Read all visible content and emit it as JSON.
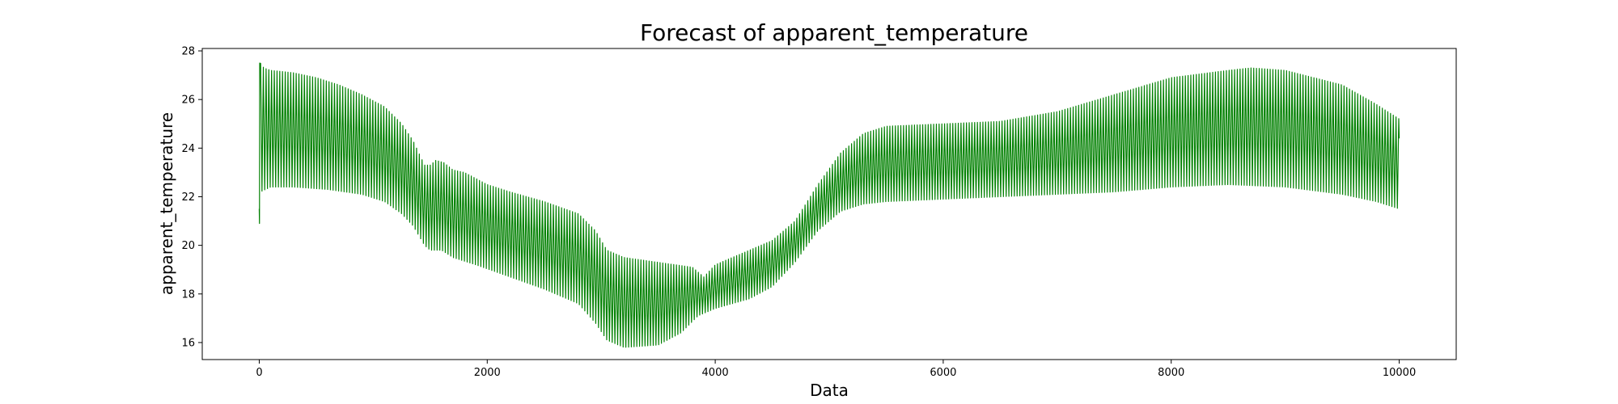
{
  "chart_data": {
    "type": "line",
    "title": "Forecast of apparent_temperature",
    "xlabel": "Data",
    "ylabel": "apparent_temperature",
    "xlim": [
      -500,
      10500
    ],
    "ylim": [
      15.3,
      28.1
    ],
    "x_ticks": [
      0,
      2000,
      4000,
      6000,
      8000,
      10000
    ],
    "y_ticks": [
      16,
      18,
      20,
      22,
      24,
      26,
      28
    ],
    "grid": false,
    "legend": "none",
    "series": [
      {
        "color": "#008000",
        "style": "oscillating band (daily cycle) between lower and upper envelope",
        "x_start": 0,
        "x_end": 10000,
        "oscillation_period": 24,
        "start_values": [
          21.5,
          20.9,
          27.5
        ],
        "end_value": 24.4,
        "upper_envelope": [
          [
            10,
            27.5
          ],
          [
            40,
            27.3
          ],
          [
            100,
            27.2
          ],
          [
            300,
            27.1
          ],
          [
            500,
            26.9
          ],
          [
            700,
            26.6
          ],
          [
            900,
            26.2
          ],
          [
            1100,
            25.7
          ],
          [
            1250,
            25.0
          ],
          [
            1350,
            24.3
          ],
          [
            1450,
            23.3
          ],
          [
            1500,
            23.3
          ],
          [
            1550,
            23.5
          ],
          [
            1620,
            23.4
          ],
          [
            1700,
            23.1
          ],
          [
            1800,
            23.0
          ],
          [
            2000,
            22.5
          ],
          [
            2200,
            22.2
          ],
          [
            2500,
            21.8
          ],
          [
            2800,
            21.3
          ],
          [
            2950,
            20.6
          ],
          [
            3050,
            19.8
          ],
          [
            3200,
            19.5
          ],
          [
            3500,
            19.3
          ],
          [
            3800,
            19.1
          ],
          [
            3900,
            18.7
          ],
          [
            4000,
            19.2
          ],
          [
            4200,
            19.6
          ],
          [
            4500,
            20.2
          ],
          [
            4700,
            21.0
          ],
          [
            4900,
            22.5
          ],
          [
            5100,
            23.8
          ],
          [
            5300,
            24.6
          ],
          [
            5500,
            24.9
          ],
          [
            6000,
            25.0
          ],
          [
            6500,
            25.1
          ],
          [
            7000,
            25.5
          ],
          [
            7500,
            26.2
          ],
          [
            8000,
            26.9
          ],
          [
            8500,
            27.2
          ],
          [
            8700,
            27.3
          ],
          [
            9000,
            27.2
          ],
          [
            9500,
            26.6
          ],
          [
            9800,
            25.8
          ],
          [
            10000,
            25.2
          ]
        ],
        "lower_envelope": [
          [
            10,
            22.2
          ],
          [
            100,
            22.4
          ],
          [
            300,
            22.4
          ],
          [
            600,
            22.3
          ],
          [
            900,
            22.1
          ],
          [
            1100,
            21.8
          ],
          [
            1250,
            21.3
          ],
          [
            1350,
            20.8
          ],
          [
            1450,
            20.0
          ],
          [
            1500,
            19.8
          ],
          [
            1600,
            19.8
          ],
          [
            1700,
            19.5
          ],
          [
            1900,
            19.2
          ],
          [
            2200,
            18.7
          ],
          [
            2500,
            18.2
          ],
          [
            2800,
            17.6
          ],
          [
            2950,
            16.8
          ],
          [
            3050,
            16.1
          ],
          [
            3200,
            15.8
          ],
          [
            3500,
            15.9
          ],
          [
            3700,
            16.4
          ],
          [
            3850,
            17.1
          ],
          [
            4000,
            17.4
          ],
          [
            4300,
            17.8
          ],
          [
            4500,
            18.3
          ],
          [
            4700,
            19.3
          ],
          [
            4900,
            20.6
          ],
          [
            5100,
            21.4
          ],
          [
            5300,
            21.7
          ],
          [
            5500,
            21.8
          ],
          [
            6000,
            21.9
          ],
          [
            6500,
            22.0
          ],
          [
            7000,
            22.1
          ],
          [
            7500,
            22.2
          ],
          [
            8000,
            22.4
          ],
          [
            8500,
            22.5
          ],
          [
            9000,
            22.4
          ],
          [
            9500,
            22.1
          ],
          [
            9800,
            21.8
          ],
          [
            10000,
            21.5
          ]
        ]
      }
    ]
  }
}
